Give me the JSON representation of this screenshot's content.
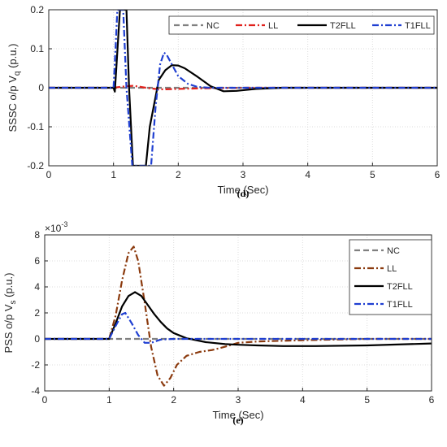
{
  "chart_data": [
    {
      "type": "line",
      "caption": "(d)",
      "title": "",
      "xlabel": "Time (Sec)",
      "ylabel": "SSSC o/p V",
      "ylabel_subscript": "q",
      "ylabel_unit": " (p.u.)",
      "xlim": [
        0,
        6
      ],
      "ylim": [
        -0.2,
        0.2
      ],
      "xticks": [
        "0",
        "1",
        "2",
        "3",
        "4",
        "5",
        "6"
      ],
      "yticks": [
        "-0.2",
        "-0.1",
        "0",
        "0.1",
        "0.2"
      ],
      "grid": true,
      "legend_placement": "top-right",
      "legend_layout": "horizontal",
      "series": [
        {
          "name": "NC",
          "color": "#808080",
          "style": "dashed",
          "x": [
            0,
            6
          ],
          "y": [
            0,
            0
          ]
        },
        {
          "name": "LL",
          "color": "#e0201b",
          "style": "dashdot",
          "x": [
            0,
            1.0,
            1.1,
            1.2,
            1.3,
            1.4,
            1.5,
            1.6,
            1.7,
            1.8,
            2.0,
            2.2,
            2.5,
            3.0,
            6.0
          ],
          "y": [
            0,
            0,
            0.002,
            0.004,
            0.005,
            0.003,
            0.0,
            -0.002,
            -0.004,
            -0.004,
            -0.003,
            -0.002,
            -0.001,
            0,
            0
          ]
        },
        {
          "name": "T2FLL",
          "color": "#000000",
          "style": "solid",
          "x": [
            0,
            1.0,
            1.02,
            1.1,
            1.2,
            1.24,
            1.3,
            1.5,
            1.56,
            1.7,
            1.8,
            1.9,
            2.0,
            2.1,
            2.3,
            2.5,
            2.7,
            2.9,
            3.2,
            3.6,
            6.0
          ],
          "y": [
            0,
            0,
            -0.01,
            0.2,
            0.2,
            0.0,
            -0.2,
            -0.2,
            -0.1,
            0.02,
            0.045,
            0.058,
            0.057,
            0.05,
            0.028,
            0.004,
            -0.009,
            -0.008,
            -0.003,
            0,
            0
          ]
        },
        {
          "name": "T1FLL",
          "color": "#1f3fd1",
          "style": "dashdot",
          "x": [
            0,
            1.0,
            1.03,
            1.06,
            1.15,
            1.2,
            1.29,
            1.34,
            1.58,
            1.65,
            1.72,
            1.78,
            1.82,
            1.9,
            2.0,
            2.15,
            2.3,
            2.5,
            3.0,
            6.0
          ],
          "y": [
            0,
            0,
            0.1,
            0.2,
            0.2,
            0.0,
            -0.2,
            -0.2,
            -0.2,
            -0.05,
            0.06,
            0.09,
            0.085,
            0.06,
            0.03,
            0.01,
            0.002,
            0,
            0,
            0
          ]
        }
      ]
    },
    {
      "type": "line",
      "caption": "(e)",
      "title": "",
      "xlabel": "Time (Sec)",
      "ylabel": "PSS o/p V",
      "ylabel_subscript": "s",
      "ylabel_unit": " (p.u.)",
      "scale_factor": "×10",
      "scale_exponent": "-3",
      "xlim": [
        0,
        6
      ],
      "ylim": [
        -4,
        8
      ],
      "xticks": [
        "0",
        "1",
        "2",
        "3",
        "4",
        "5",
        "6"
      ],
      "yticks": [
        "-4",
        "-2",
        "0",
        "2",
        "4",
        "6",
        "8"
      ],
      "grid": true,
      "legend_placement": "top-right",
      "legend_layout": "vertical",
      "series": [
        {
          "name": "NC",
          "color": "#808080",
          "style": "dashed",
          "x": [
            0,
            6
          ],
          "y": [
            0,
            0
          ]
        },
        {
          "name": "LL",
          "color": "#8b3a0e",
          "style": "dashdot",
          "x": [
            0,
            1.0,
            1.1,
            1.2,
            1.3,
            1.38,
            1.45,
            1.55,
            1.65,
            1.75,
            1.85,
            1.95,
            2.05,
            2.2,
            2.4,
            2.6,
            2.8,
            3.0,
            3.3,
            4.0,
            5.0,
            6.0
          ],
          "y": [
            0,
            0,
            1.8,
            4.5,
            6.6,
            7.1,
            6.0,
            2.8,
            -0.6,
            -2.8,
            -3.6,
            -3.0,
            -2.0,
            -1.3,
            -1.0,
            -0.85,
            -0.6,
            -0.3,
            -0.2,
            -0.1,
            0,
            0
          ]
        },
        {
          "name": "T2FLL",
          "color": "#000000",
          "style": "solid",
          "x": [
            0,
            1.0,
            1.1,
            1.2,
            1.3,
            1.4,
            1.5,
            1.6,
            1.7,
            1.8,
            1.9,
            2.0,
            2.2,
            2.5,
            2.8,
            3.0,
            3.3,
            3.7,
            4.2,
            5.0,
            6.0
          ],
          "y": [
            0,
            0,
            1.2,
            2.5,
            3.3,
            3.6,
            3.3,
            2.6,
            1.9,
            1.3,
            0.8,
            0.45,
            0.05,
            -0.25,
            -0.4,
            -0.45,
            -0.5,
            -0.55,
            -0.55,
            -0.5,
            -0.35
          ]
        },
        {
          "name": "T1FLL",
          "color": "#1f3fd1",
          "style": "dashdot",
          "x": [
            0,
            1.0,
            1.1,
            1.2,
            1.25,
            1.35,
            1.45,
            1.55,
            1.65,
            1.8,
            2.0,
            2.3,
            3.0,
            6.0
          ],
          "y": [
            0,
            0,
            1.0,
            1.9,
            2.0,
            1.2,
            0.3,
            -0.3,
            -0.3,
            -0.05,
            0,
            0,
            0,
            0
          ]
        }
      ]
    }
  ]
}
